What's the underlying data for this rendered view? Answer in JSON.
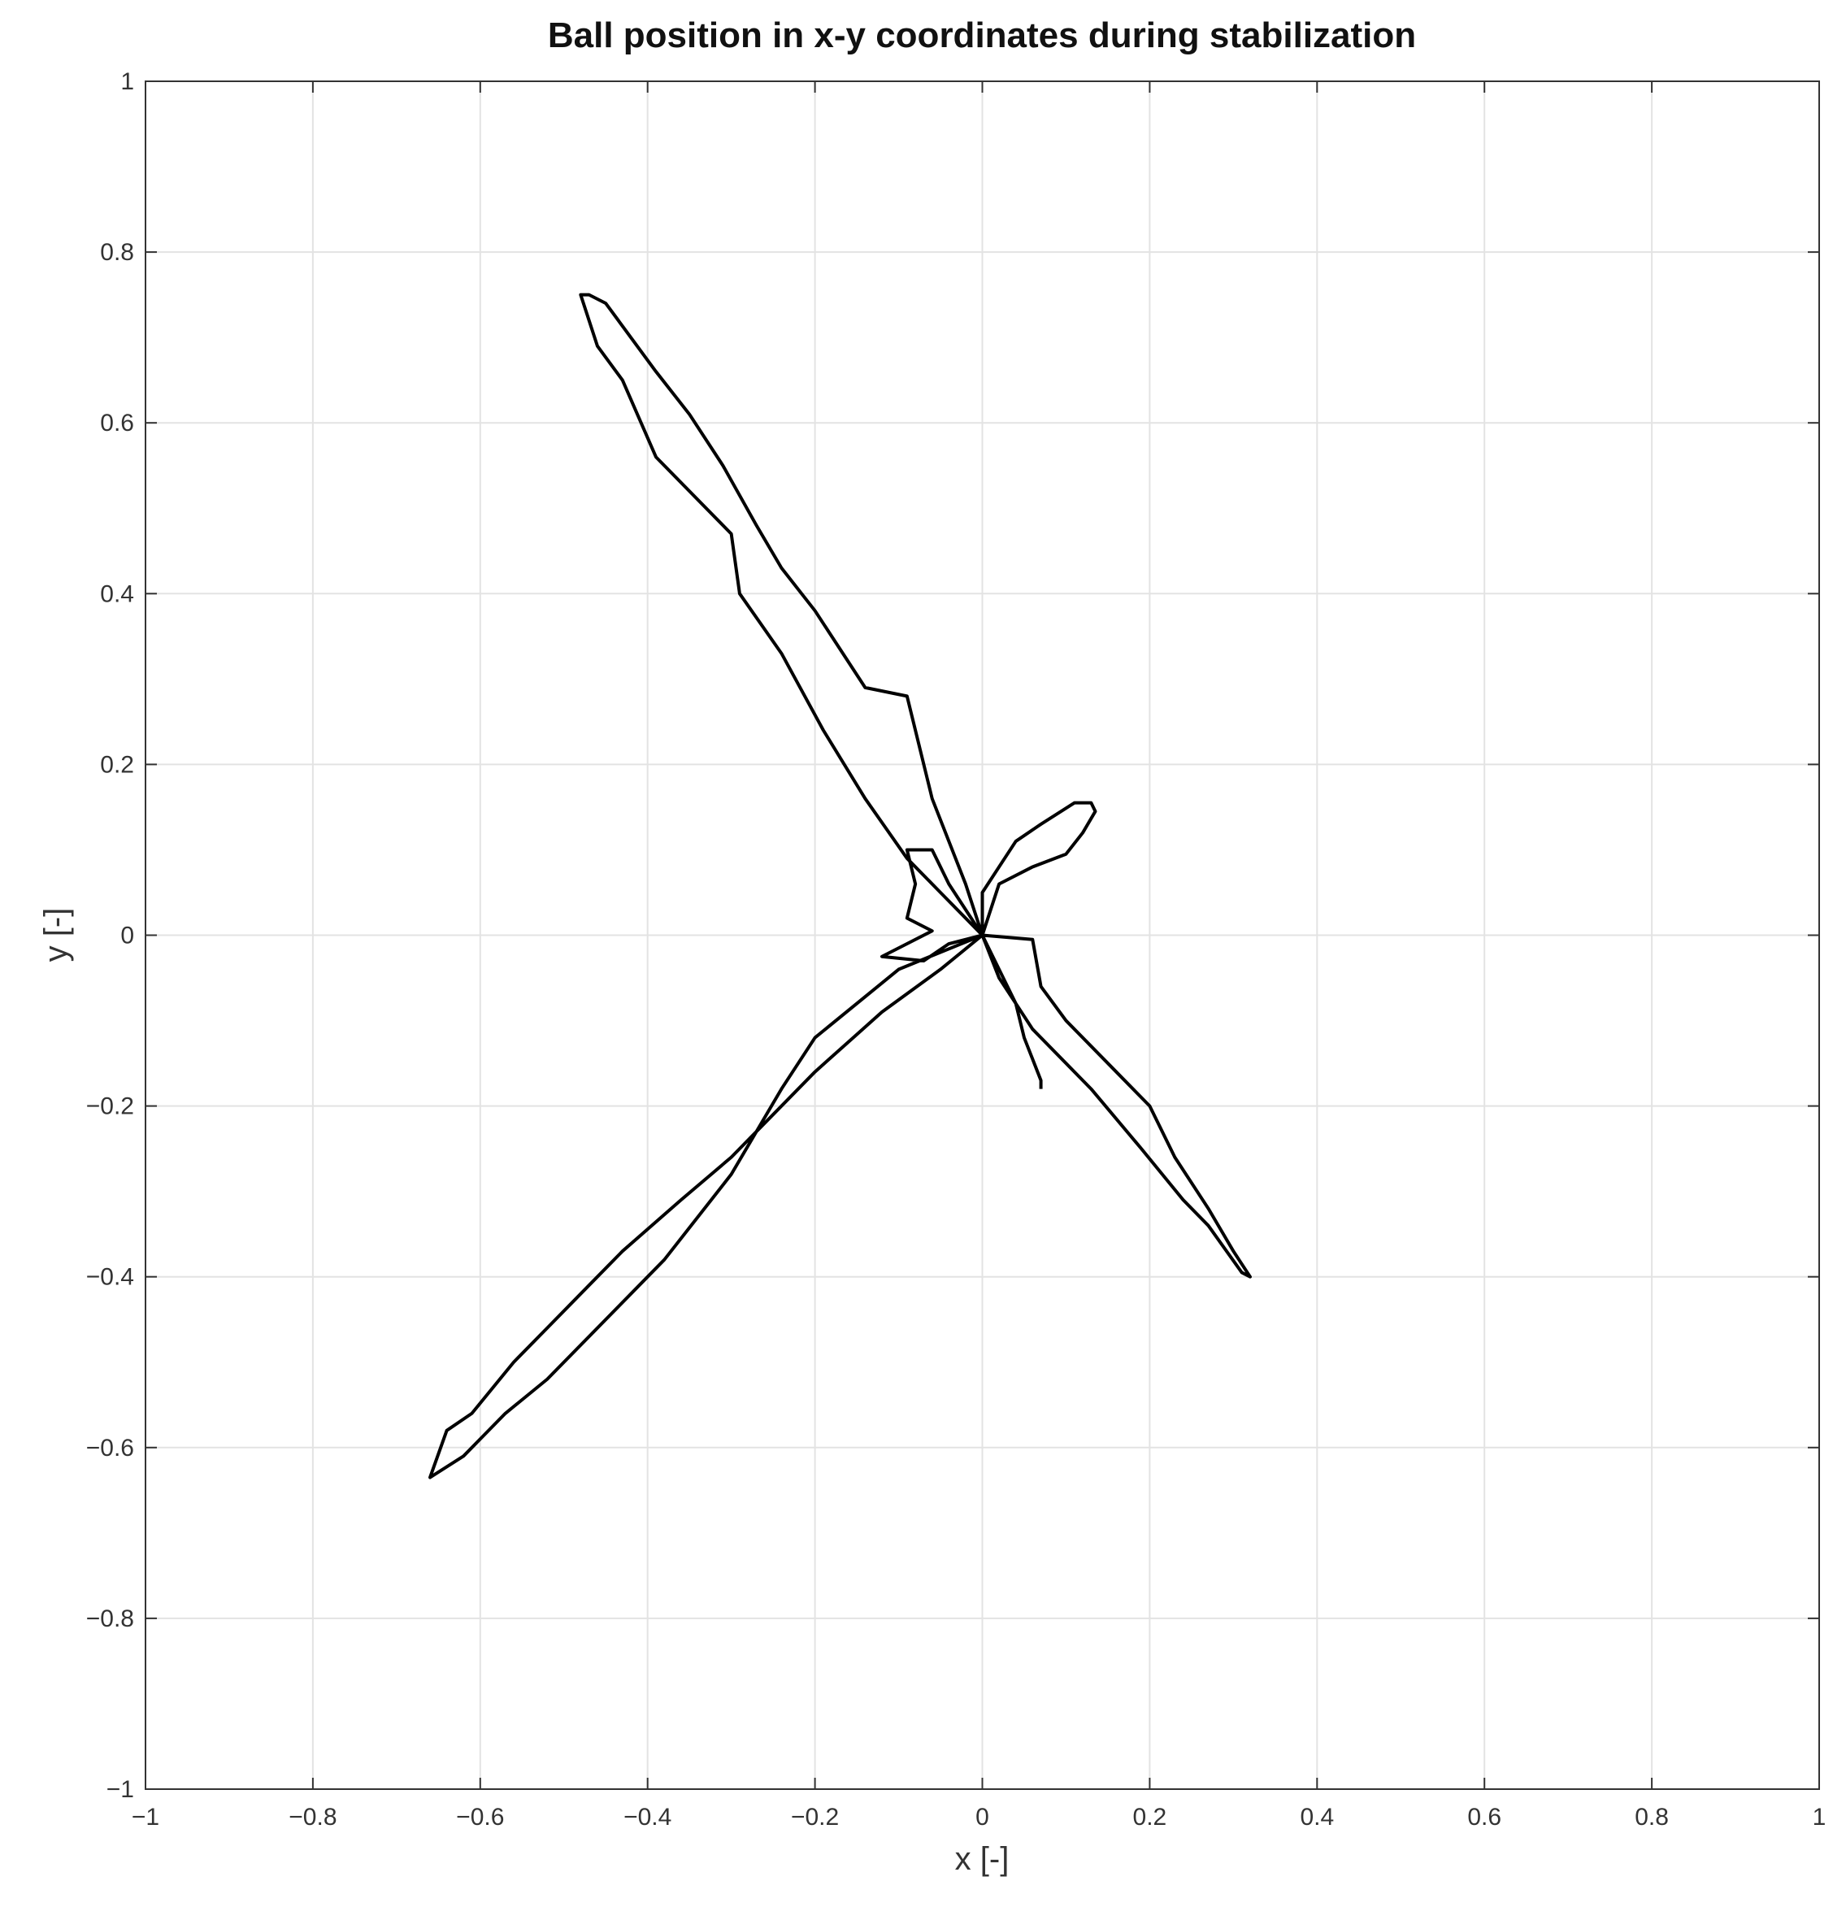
{
  "chart_data": {
    "type": "line",
    "title": "Ball position in x-y coordinates during stabilization",
    "x_label": "x [-]",
    "y_label": "y [-]",
    "color": "#000000",
    "grid": true,
    "xlim": [
      -1,
      1
    ],
    "ylim": [
      -1,
      1
    ],
    "xticks": [
      {
        "value": -1,
        "label": "−1"
      },
      {
        "value": -0.8,
        "label": "−0.8"
      },
      {
        "value": -0.6,
        "label": "−0.6"
      },
      {
        "value": -0.4,
        "label": "−0.4"
      },
      {
        "value": -0.2,
        "label": "−0.2"
      },
      0,
      0.2,
      0.4,
      0.6,
      0.8,
      1
    ],
    "yticks": [
      {
        "value": -1,
        "label": "−1"
      },
      {
        "value": -0.8,
        "label": "−0.8"
      },
      {
        "value": -0.6,
        "label": "−0.6"
      },
      {
        "value": -0.4,
        "label": "−0.4"
      },
      {
        "value": -0.2,
        "label": "−0.2"
      },
      0,
      0.2,
      0.4,
      0.6,
      0.8,
      1
    ],
    "x": [
      0,
      -0.02,
      -0.06,
      -0.09,
      -0.14,
      -0.2,
      -0.24,
      -0.27,
      -0.31,
      -0.35,
      -0.39,
      -0.42,
      -0.45,
      -0.47,
      -0.48,
      -0.47,
      -0.46,
      -0.43,
      -0.39,
      -0.3,
      -0.29,
      -0.24,
      -0.19,
      -0.14,
      -0.09,
      -0.05,
      0,
      -0.1,
      -0.2,
      -0.24,
      -0.3,
      -0.38,
      -0.45,
      -0.52,
      -0.57,
      -0.62,
      -0.66,
      -0.64,
      -0.61,
      -0.56,
      -0.52,
      -0.48,
      -0.45,
      -0.43,
      -0.36,
      -0.3,
      -0.2,
      -0.12,
      -0.05,
      0,
      0.06,
      0.07,
      0.1,
      0.15,
      0.2,
      0.23,
      0.27,
      0.3,
      0.32,
      0.31,
      0.27,
      0.24,
      0.19,
      0.13,
      0.06,
      0.02,
      0,
      0.02,
      0.06,
      0.1,
      0.12,
      0.135,
      0.13,
      0.11,
      0.07,
      0.04,
      0.02,
      0,
      0,
      -0.04,
      -0.06,
      -0.09,
      -0.08,
      -0.09,
      -0.06,
      -0.1,
      -0.12,
      -0.07,
      -0.04,
      0,
      0.04,
      0.05,
      0.07,
      0.07
    ],
    "values": [
      0,
      0.06,
      0.16,
      0.28,
      0.29,
      0.38,
      0.43,
      0.48,
      0.55,
      0.61,
      0.66,
      0.7,
      0.74,
      0.75,
      0.75,
      0.72,
      0.69,
      0.65,
      0.56,
      0.47,
      0.4,
      0.33,
      0.24,
      0.16,
      0.09,
      0.05,
      0,
      -0.04,
      -0.12,
      -0.18,
      -0.28,
      -0.38,
      -0.45,
      -0.52,
      -0.56,
      -0.61,
      -0.635,
      -0.58,
      -0.56,
      -0.5,
      -0.46,
      -0.42,
      -0.39,
      -0.37,
      -0.31,
      -0.26,
      -0.16,
      -0.09,
      -0.04,
      0,
      -0.005,
      -0.06,
      -0.1,
      -0.15,
      -0.2,
      -0.26,
      -0.32,
      -0.37,
      -0.4,
      -0.395,
      -0.34,
      -0.31,
      -0.25,
      -0.18,
      -0.11,
      -0.05,
      0,
      0.06,
      0.08,
      0.095,
      0.12,
      0.145,
      0.155,
      0.155,
      0.13,
      0.11,
      0.08,
      0.05,
      0,
      0.06,
      0.1,
      0.1,
      0.06,
      0.02,
      0.005,
      -0.015,
      -0.025,
      -0.03,
      -0.01,
      0,
      -0.08,
      -0.12,
      -0.17,
      -0.18
    ]
  }
}
